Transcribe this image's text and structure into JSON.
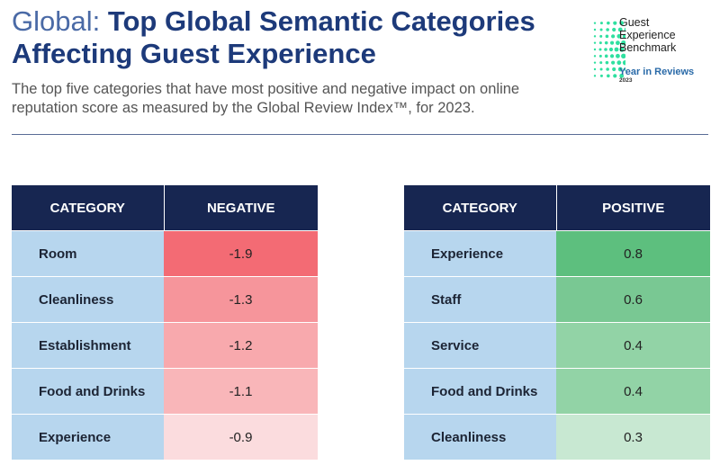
{
  "header": {
    "prefix": "Global:",
    "title": "Top Global Semantic Categories Affecting Guest Experience",
    "subtitle": "The top five categories that have most positive and negative impact on online reputation score as measured by the Global Review Index™, for 2023."
  },
  "logo": {
    "line1": "Guest",
    "line2": "Experience",
    "line3": "Benchmark",
    "line4": "Year in Reviews",
    "year": "2023"
  },
  "chart_data": [
    {
      "type": "table",
      "columns": [
        "CATEGORY",
        "NEGATIVE"
      ],
      "categories": [
        "Room",
        "Cleanliness",
        "Establishment",
        "Food and Drinks",
        "Experience"
      ],
      "values": [
        "-1.9",
        "-1.3",
        "-1.2",
        "-1.1",
        "-0.9"
      ],
      "colors": [
        "#f36b74",
        "#f6959b",
        "#f8a9ad",
        "#f9b6b9",
        "#fbdcde"
      ]
    },
    {
      "type": "table",
      "columns": [
        "CATEGORY",
        "POSITIVE"
      ],
      "categories": [
        "Experience",
        "Staff",
        "Service",
        "Food and Drinks",
        "Cleanliness"
      ],
      "values": [
        "0.8",
        "0.6",
        "0.4",
        "0.4",
        "0.3"
      ],
      "colors": [
        "#5dbf7e",
        "#79c893",
        "#92d3a6",
        "#92d3a6",
        "#c8e8d2"
      ]
    }
  ]
}
